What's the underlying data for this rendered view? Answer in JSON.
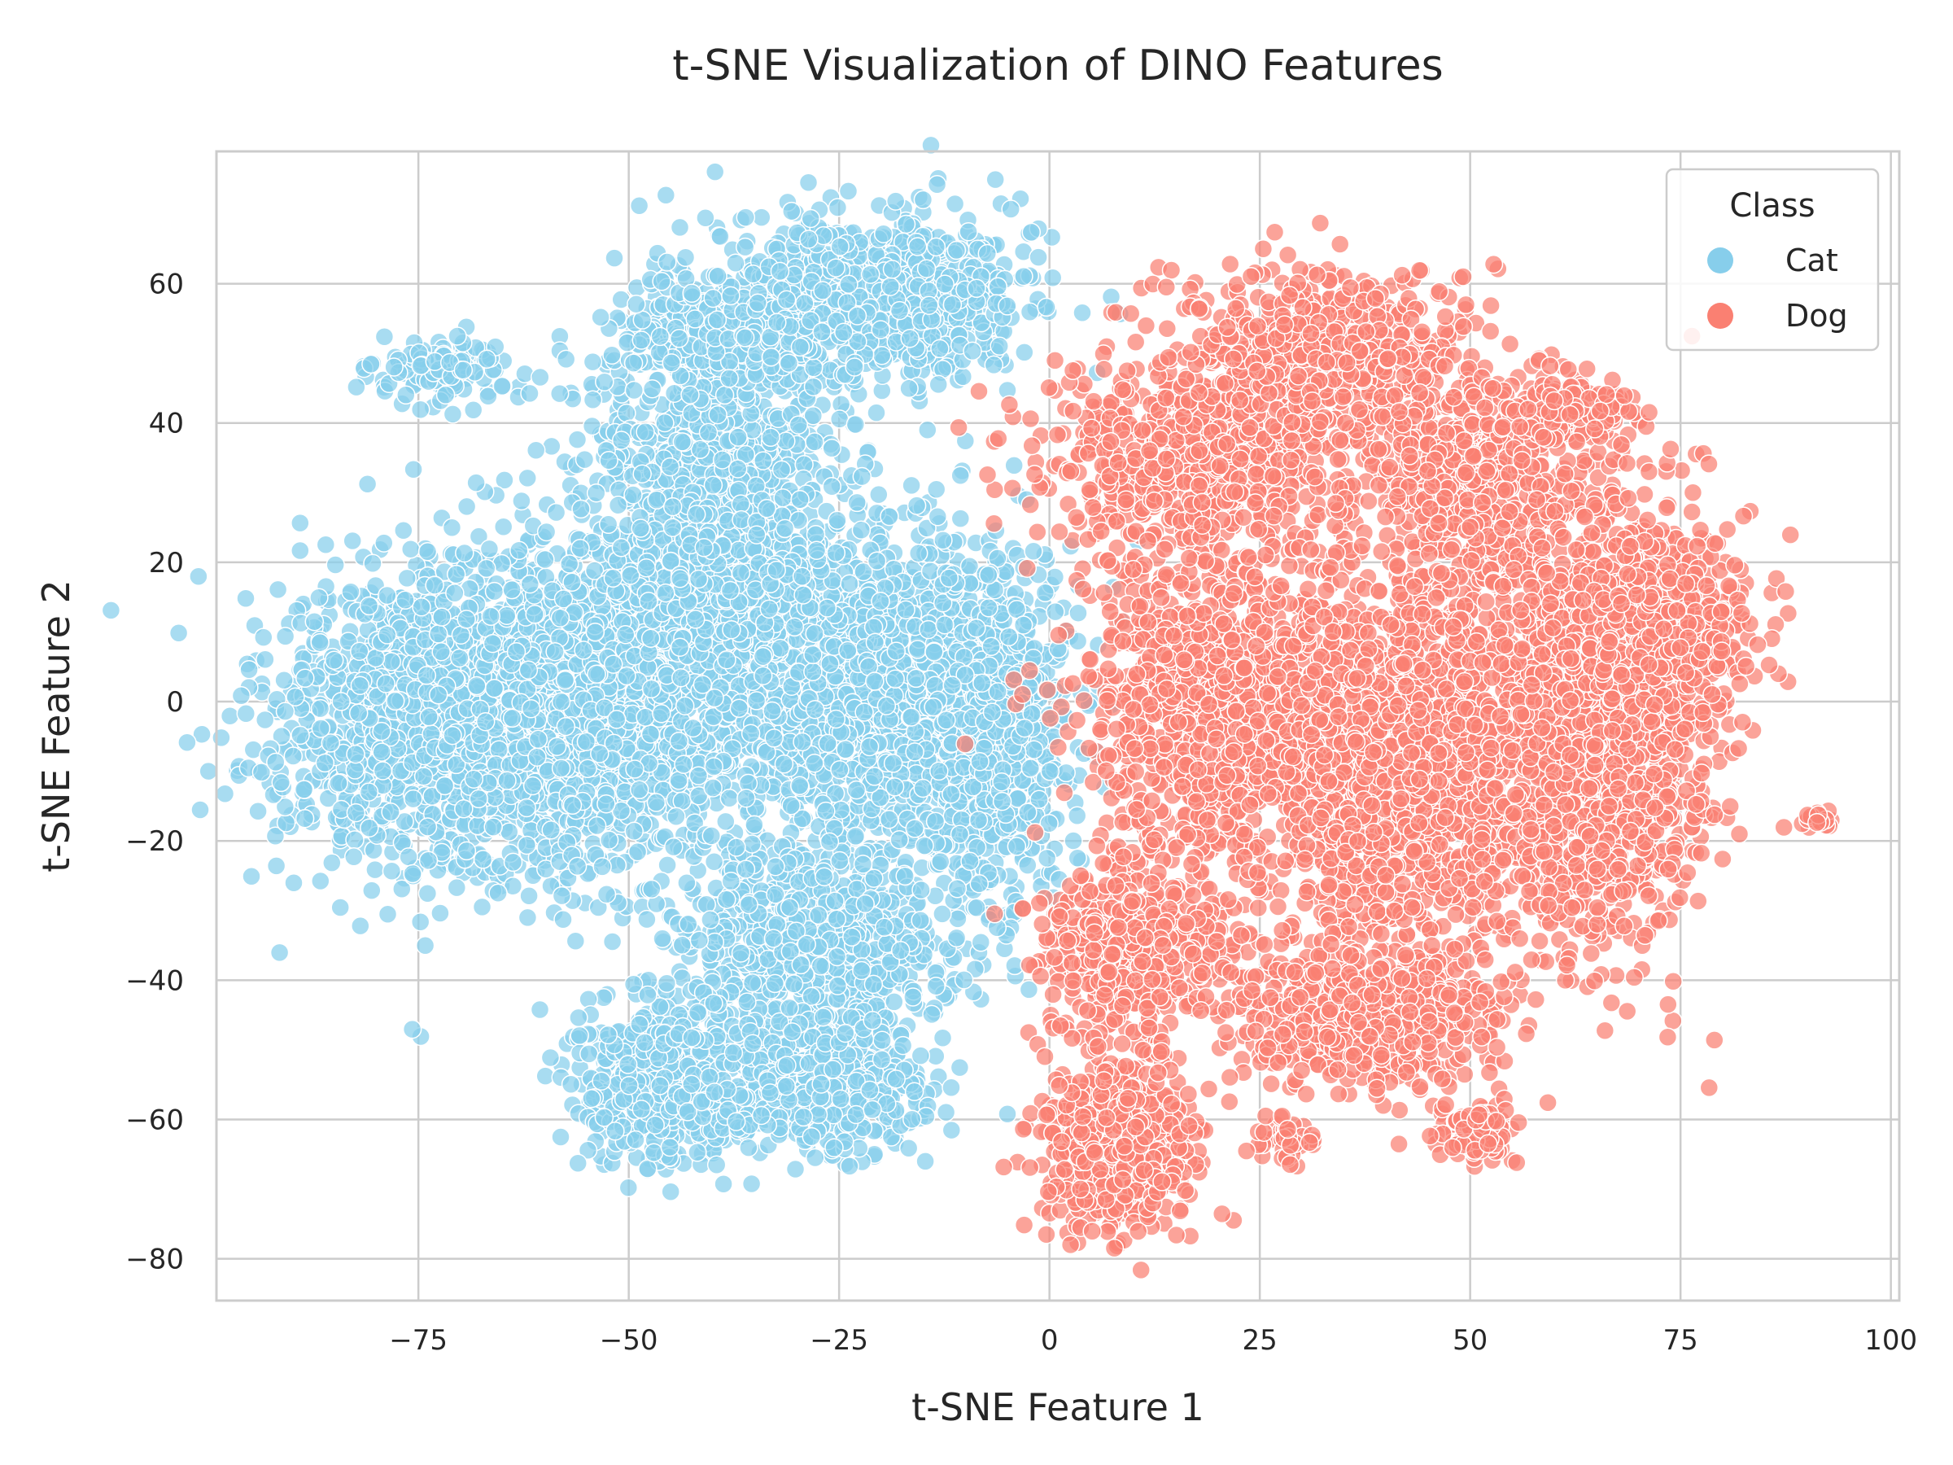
{
  "chart_data": {
    "type": "scatter",
    "title": "t-SNE Visualization of DINO Features",
    "xlabel": "t-SNE Feature 1",
    "ylabel": "t-SNE Feature 2",
    "xlim": [
      -99,
      101
    ],
    "ylim": [
      -86,
      79
    ],
    "xticks": [
      -75,
      -50,
      -25,
      0,
      25,
      50,
      75,
      100
    ],
    "yticks": [
      -80,
      -60,
      -40,
      -20,
      0,
      20,
      40,
      60
    ],
    "xtick_labels": [
      "−75",
      "−50",
      "−25",
      "0",
      "25",
      "50",
      "75",
      "100"
    ],
    "ytick_labels": [
      "−80",
      "−60",
      "−40",
      "−20",
      "0",
      "20",
      "40",
      "60"
    ],
    "grid": true,
    "legend": {
      "title": "Class",
      "placement": "top-right"
    },
    "series": [
      {
        "name": "Cat",
        "color": "#87CEEB",
        "clusters": [
          {
            "cx": -72,
            "cy": 47,
            "rx": 8,
            "ry": 5,
            "n": 120
          },
          {
            "cx": -72,
            "cy": -3,
            "rx": 18,
            "ry": 20,
            "n": 1600
          },
          {
            "cx": -50,
            "cy": 3,
            "rx": 18,
            "ry": 22,
            "n": 1600
          },
          {
            "cx": -40,
            "cy": 35,
            "rx": 13,
            "ry": 12,
            "n": 500
          },
          {
            "cx": -41,
            "cy": 52,
            "rx": 10,
            "ry": 8,
            "n": 300
          },
          {
            "cx": -22,
            "cy": 58,
            "rx": 18,
            "ry": 11,
            "n": 900
          },
          {
            "cx": -22,
            "cy": 2,
            "rx": 18,
            "ry": 22,
            "n": 1500
          },
          {
            "cx": -8,
            "cy": -5,
            "rx": 9,
            "ry": 22,
            "n": 700
          },
          {
            "cx": -28,
            "cy": -35,
            "rx": 16,
            "ry": 12,
            "n": 700
          },
          {
            "cx": -45,
            "cy": -55,
            "rx": 10,
            "ry": 10,
            "n": 600
          },
          {
            "cx": -28,
            "cy": -55,
            "rx": 12,
            "ry": 9,
            "n": 500
          },
          {
            "cx": -38,
            "cy": 20,
            "rx": 12,
            "ry": 8,
            "n": 300
          }
        ]
      },
      {
        "name": "Dog",
        "color": "#FA8072",
        "clusters": [
          {
            "cx": 17,
            "cy": 35,
            "rx": 16,
            "ry": 12,
            "n": 700
          },
          {
            "cx": 32,
            "cy": 50,
            "rx": 14,
            "ry": 11,
            "n": 600
          },
          {
            "cx": 50,
            "cy": 32,
            "rx": 12,
            "ry": 15,
            "n": 600
          },
          {
            "cx": 20,
            "cy": 0,
            "rx": 14,
            "ry": 20,
            "n": 1100
          },
          {
            "cx": 42,
            "cy": -8,
            "rx": 16,
            "ry": 24,
            "n": 1600
          },
          {
            "cx": 65,
            "cy": -5,
            "rx": 12,
            "ry": 28,
            "n": 1400
          },
          {
            "cx": 72,
            "cy": 10,
            "rx": 11,
            "ry": 14,
            "n": 600
          },
          {
            "cx": 10,
            "cy": -35,
            "rx": 10,
            "ry": 12,
            "n": 500
          },
          {
            "cx": 8,
            "cy": -63,
            "rx": 8,
            "ry": 11,
            "n": 700
          },
          {
            "cx": 38,
            "cy": -45,
            "rx": 14,
            "ry": 9,
            "n": 700
          },
          {
            "cx": 50,
            "cy": -62,
            "rx": 4,
            "ry": 4,
            "n": 120
          },
          {
            "cx": 28,
            "cy": -63,
            "rx": 3,
            "ry": 3,
            "n": 40
          },
          {
            "cx": 91,
            "cy": -17,
            "rx": 1.5,
            "ry": 1,
            "n": 20
          },
          {
            "cx": 62,
            "cy": 42,
            "rx": 8,
            "ry": 4,
            "n": 150
          }
        ]
      }
    ]
  }
}
